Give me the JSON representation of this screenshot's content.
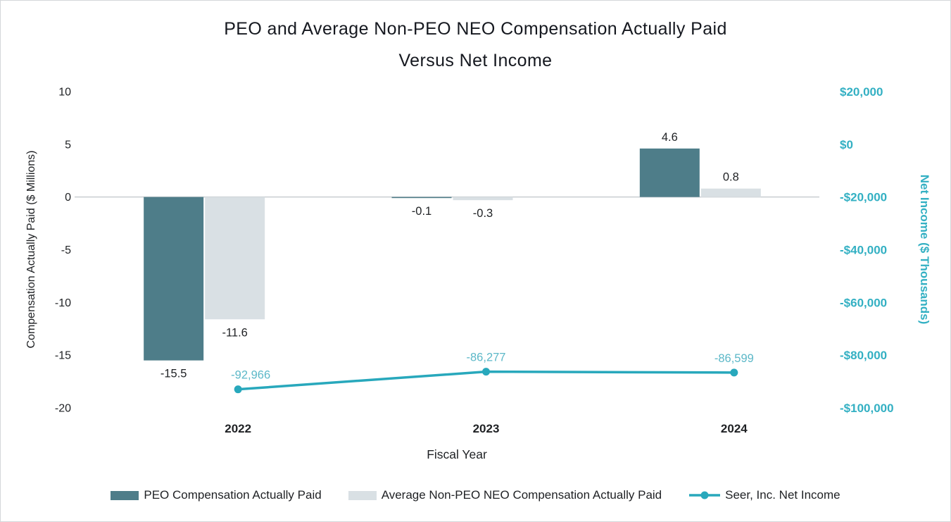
{
  "title": {
    "line1": "PEO and Average Non-PEO NEO Compensation Actually Paid",
    "line2": "Versus Net Income"
  },
  "chart_data": {
    "type": "combo-bar-line",
    "categories": [
      "2022",
      "2023",
      "2024"
    ],
    "x_axis_title": "Fiscal Year",
    "legend_position": "bottom",
    "axes": {
      "left": {
        "title": "Compensation Actually Paid ($ Millions)",
        "min": -20,
        "max": 10,
        "ticks": [
          {
            "value": 10,
            "label": "10"
          },
          {
            "value": 5,
            "label": "5"
          },
          {
            "value": 0,
            "label": "0"
          },
          {
            "value": -5,
            "label": "-5"
          },
          {
            "value": -10,
            "label": "-10"
          },
          {
            "value": -15,
            "label": "-15"
          },
          {
            "value": -20,
            "label": "-20"
          }
        ]
      },
      "right": {
        "title": "Net Income ($ Thousands)",
        "min": -100000,
        "max": 20000,
        "color": "#33b0c3",
        "ticks": [
          {
            "value": 20000,
            "label": "$20,000"
          },
          {
            "value": 0,
            "label": "$0"
          },
          {
            "value": -20000,
            "label": "-$20,000"
          },
          {
            "value": -40000,
            "label": "-$40,000"
          },
          {
            "value": -60000,
            "label": "-$60,000"
          },
          {
            "value": -80000,
            "label": "-$80,000"
          },
          {
            "value": -100000,
            "label": "-$100,000"
          }
        ]
      }
    },
    "bar_series": [
      {
        "name": "PEO Compensation Actually Paid",
        "color": "#4e7d89",
        "axis": "left",
        "values": [
          -15.5,
          -0.1,
          4.6
        ],
        "labels": [
          "-15.5",
          "-0.1",
          "4.6"
        ]
      },
      {
        "name": "Average Non-PEO NEO Compensation Actually Paid",
        "color": "#d9e0e4",
        "axis": "left",
        "values": [
          -11.6,
          -0.3,
          0.8
        ],
        "labels": [
          "-11.6",
          "-0.3",
          "0.8"
        ]
      }
    ],
    "line_series": [
      {
        "name": "Seer, Inc. Net Income",
        "color": "#28a8bc",
        "label_color": "#5cb8c8",
        "axis": "right",
        "values": [
          -92966,
          -86277,
          -86599
        ],
        "labels": [
          "-92,966",
          "-86,277",
          "-86,599"
        ]
      }
    ],
    "colors": {
      "zero_line": "#c9cdd0",
      "text": "#1f2124",
      "background": "#ffffff"
    }
  }
}
